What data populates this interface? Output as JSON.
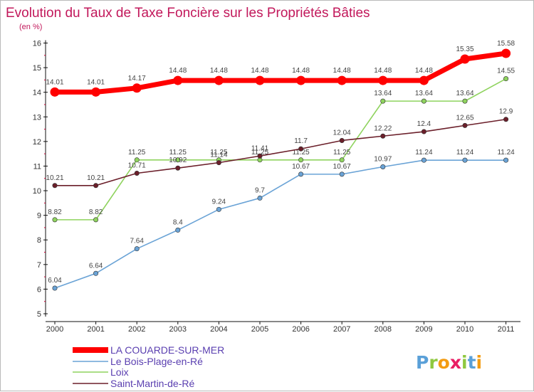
{
  "chart_data": {
    "type": "line",
    "title": "Evolution du Taux de Taxe Foncière sur les Propriétés Bâties",
    "subtitle": "(en %)",
    "xlabel": "",
    "ylabel": "(en %)",
    "x": [
      "2000",
      "2001",
      "2002",
      "2003",
      "2004",
      "2005",
      "2006",
      "2007",
      "2008",
      "2009",
      "2010",
      "2011"
    ],
    "yticks": [
      "5",
      "6",
      "7",
      "8",
      "9",
      "10",
      "11",
      "12",
      "13",
      "14",
      "15",
      "16"
    ],
    "ylim": [
      5,
      16
    ],
    "grid": false,
    "legend_position": "bottom-left",
    "series": [
      {
        "name": "LA COUARDE-SUR-MER",
        "color": "#ff0000",
        "values": [
          14.01,
          14.01,
          14.17,
          14.48,
          14.48,
          14.48,
          14.48,
          14.48,
          14.48,
          14.48,
          15.35,
          15.58
        ],
        "labels": [
          "14.01",
          "14.01",
          "14.17",
          "14.48",
          "14.48",
          "14.48",
          "14.48",
          "14.48",
          "14.48",
          "14.48",
          "15.35",
          "15.58"
        ]
      },
      {
        "name": "Le Bois-Plage-en-Ré",
        "color": "#6aa3d6",
        "values": [
          6.04,
          6.64,
          7.64,
          8.4,
          9.24,
          9.7,
          10.67,
          10.67,
          10.97,
          11.24,
          11.24,
          11.24
        ],
        "labels": [
          "6.04",
          "6.64",
          "7.64",
          "8.4",
          "9.24",
          "9.7",
          "10.67",
          "10.67",
          "10.97",
          "11.24",
          "11.24",
          "11.24"
        ]
      },
      {
        "name": "Loix",
        "color": "#8fd35e",
        "values": [
          8.82,
          8.82,
          11.25,
          11.25,
          11.25,
          11.25,
          11.25,
          11.25,
          13.64,
          13.64,
          13.64,
          14.55
        ],
        "labels": [
          "8.82",
          "8.82",
          "11.25",
          "11.25",
          "11.25",
          "11.25",
          "11.25",
          "11.25",
          "13.64",
          "13.64",
          "13.64",
          "14.55"
        ]
      },
      {
        "name": "Saint-Martin-de-Ré",
        "color": "#6b1f2a",
        "values": [
          10.21,
          10.21,
          10.71,
          10.92,
          11.14,
          11.41,
          11.7,
          12.04,
          12.22,
          12.4,
          12.65,
          12.9
        ],
        "labels": [
          "10.21",
          "10.21",
          "10.71",
          "10.92",
          "11.14",
          "11.41",
          "11.7",
          "12.04",
          "12.22",
          "12.4",
          "12.65",
          "12.9"
        ]
      }
    ]
  },
  "brand": {
    "letters": [
      "P",
      "r",
      "o",
      "x",
      "i",
      "t",
      "i"
    ],
    "colors": [
      "#5aa0d8",
      "#8fc83f",
      "#f39c12",
      "#e91e63",
      "#8fc83f",
      "#5aa0d8",
      "#f39c12"
    ]
  }
}
